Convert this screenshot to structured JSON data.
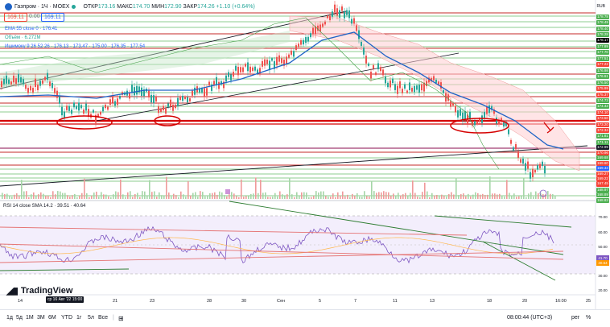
{
  "header": {
    "symbol": "Газпром · 1Ч · MOEX",
    "ohlc": {
      "open_label": "ОТКР",
      "open": "173.16",
      "high_label": "МАКС",
      "high": "174.70",
      "low_label": "МИН",
      "low": "172.90",
      "close_label": "ЗАКР",
      "close": "174.26",
      "change": "+1.10 (+0.64%)"
    },
    "bid": "169.11",
    "spread": "0.00",
    "ask": "169.11"
  },
  "indicators": {
    "ema": "EMA 55 close 0 · 176.41",
    "volume": "Объём · 6.272M",
    "ichimoku": "Ишимоку 9 26 52 26 · 176.13 · 173.47 · 175.00 · 176.35 · 177.54"
  },
  "rsi": {
    "label": "RSI 14 close SMA 14.2 · 39.51 · 40.64",
    "value_a": "41.70",
    "value_b": "40.64"
  },
  "price_axis": {
    "currency": "RUB",
    "labels": [
      {
        "text": "178.78",
        "color": "#4caf50"
      },
      {
        "text": "178.49",
        "color": "#4caf50"
      },
      {
        "text": "178.40",
        "color": "#4caf50"
      },
      {
        "text": "178.28",
        "color": "#4caf50"
      },
      {
        "text": "178.17",
        "color": "#000000"
      },
      {
        "text": "177.89",
        "color": "#4caf50"
      },
      {
        "text": "177.70",
        "color": "#4caf50"
      },
      {
        "text": "177.51",
        "color": "#4caf50"
      },
      {
        "text": "177.22",
        "color": "#f44336"
      },
      {
        "text": "176.98",
        "color": "#4caf50"
      },
      {
        "text": "176.61",
        "color": "#4caf50"
      },
      {
        "text": "176.50",
        "color": "#4caf50"
      },
      {
        "text": "175.99",
        "color": "#f44336"
      },
      {
        "text": "175.37",
        "color": "#f44336"
      },
      {
        "text": "174.73",
        "color": "#4caf50"
      },
      {
        "text": "174.43",
        "color": "#4caf50"
      },
      {
        "text": "174.10",
        "color": "#f44336"
      },
      {
        "text": "173.50",
        "color": "#f44336"
      },
      {
        "text": "173.20",
        "color": "#f44336"
      },
      {
        "text": "172.34",
        "color": "#f44336"
      },
      {
        "text": "171.81",
        "color": "#4caf50"
      },
      {
        "text": "171.11",
        "color": "#4caf50"
      },
      {
        "text": "172.99",
        "color": "#131722"
      },
      {
        "text": "170.96",
        "color": "#f44336"
      },
      {
        "text": "169.68",
        "color": "#4caf50"
      },
      {
        "text": "169.60",
        "color": "#f44336"
      },
      {
        "text": "169.33",
        "color": "#2962ff"
      },
      {
        "text": "169.27",
        "color": "#f44336"
      },
      {
        "text": "169.22",
        "color": "#f44336"
      },
      {
        "text": "169.11",
        "color": "#f44336"
      },
      {
        "text": "168.97",
        "color": "#4caf50"
      },
      {
        "text": "168.89",
        "color": "#4caf50"
      },
      {
        "text": "168.83",
        "color": "#4caf50"
      },
      {
        "text": "167.45",
        "color": "#f44336"
      }
    ],
    "rsi_labels": [
      "70.00",
      "60.00",
      "50.00",
      "41.70",
      "40.64",
      "30.00",
      "20.00"
    ]
  },
  "xaxis": {
    "labels": [
      "14",
      "17",
      "21",
      "23",
      "28",
      "30",
      "Сен",
      "5",
      "7",
      "11",
      "13",
      "18",
      "20",
      "16:00",
      "25"
    ],
    "highlight": "ср 16 Авг '22   15:00"
  },
  "branding": "TradingView",
  "bottom": {
    "timeframes": [
      "1д",
      "5д",
      "1М",
      "3М",
      "6М",
      "YTD",
      "1г",
      "5л",
      "Все"
    ],
    "clock": "08:00:44 (UTC+3)",
    "mode1": "рег",
    "mode2": "%"
  }
}
